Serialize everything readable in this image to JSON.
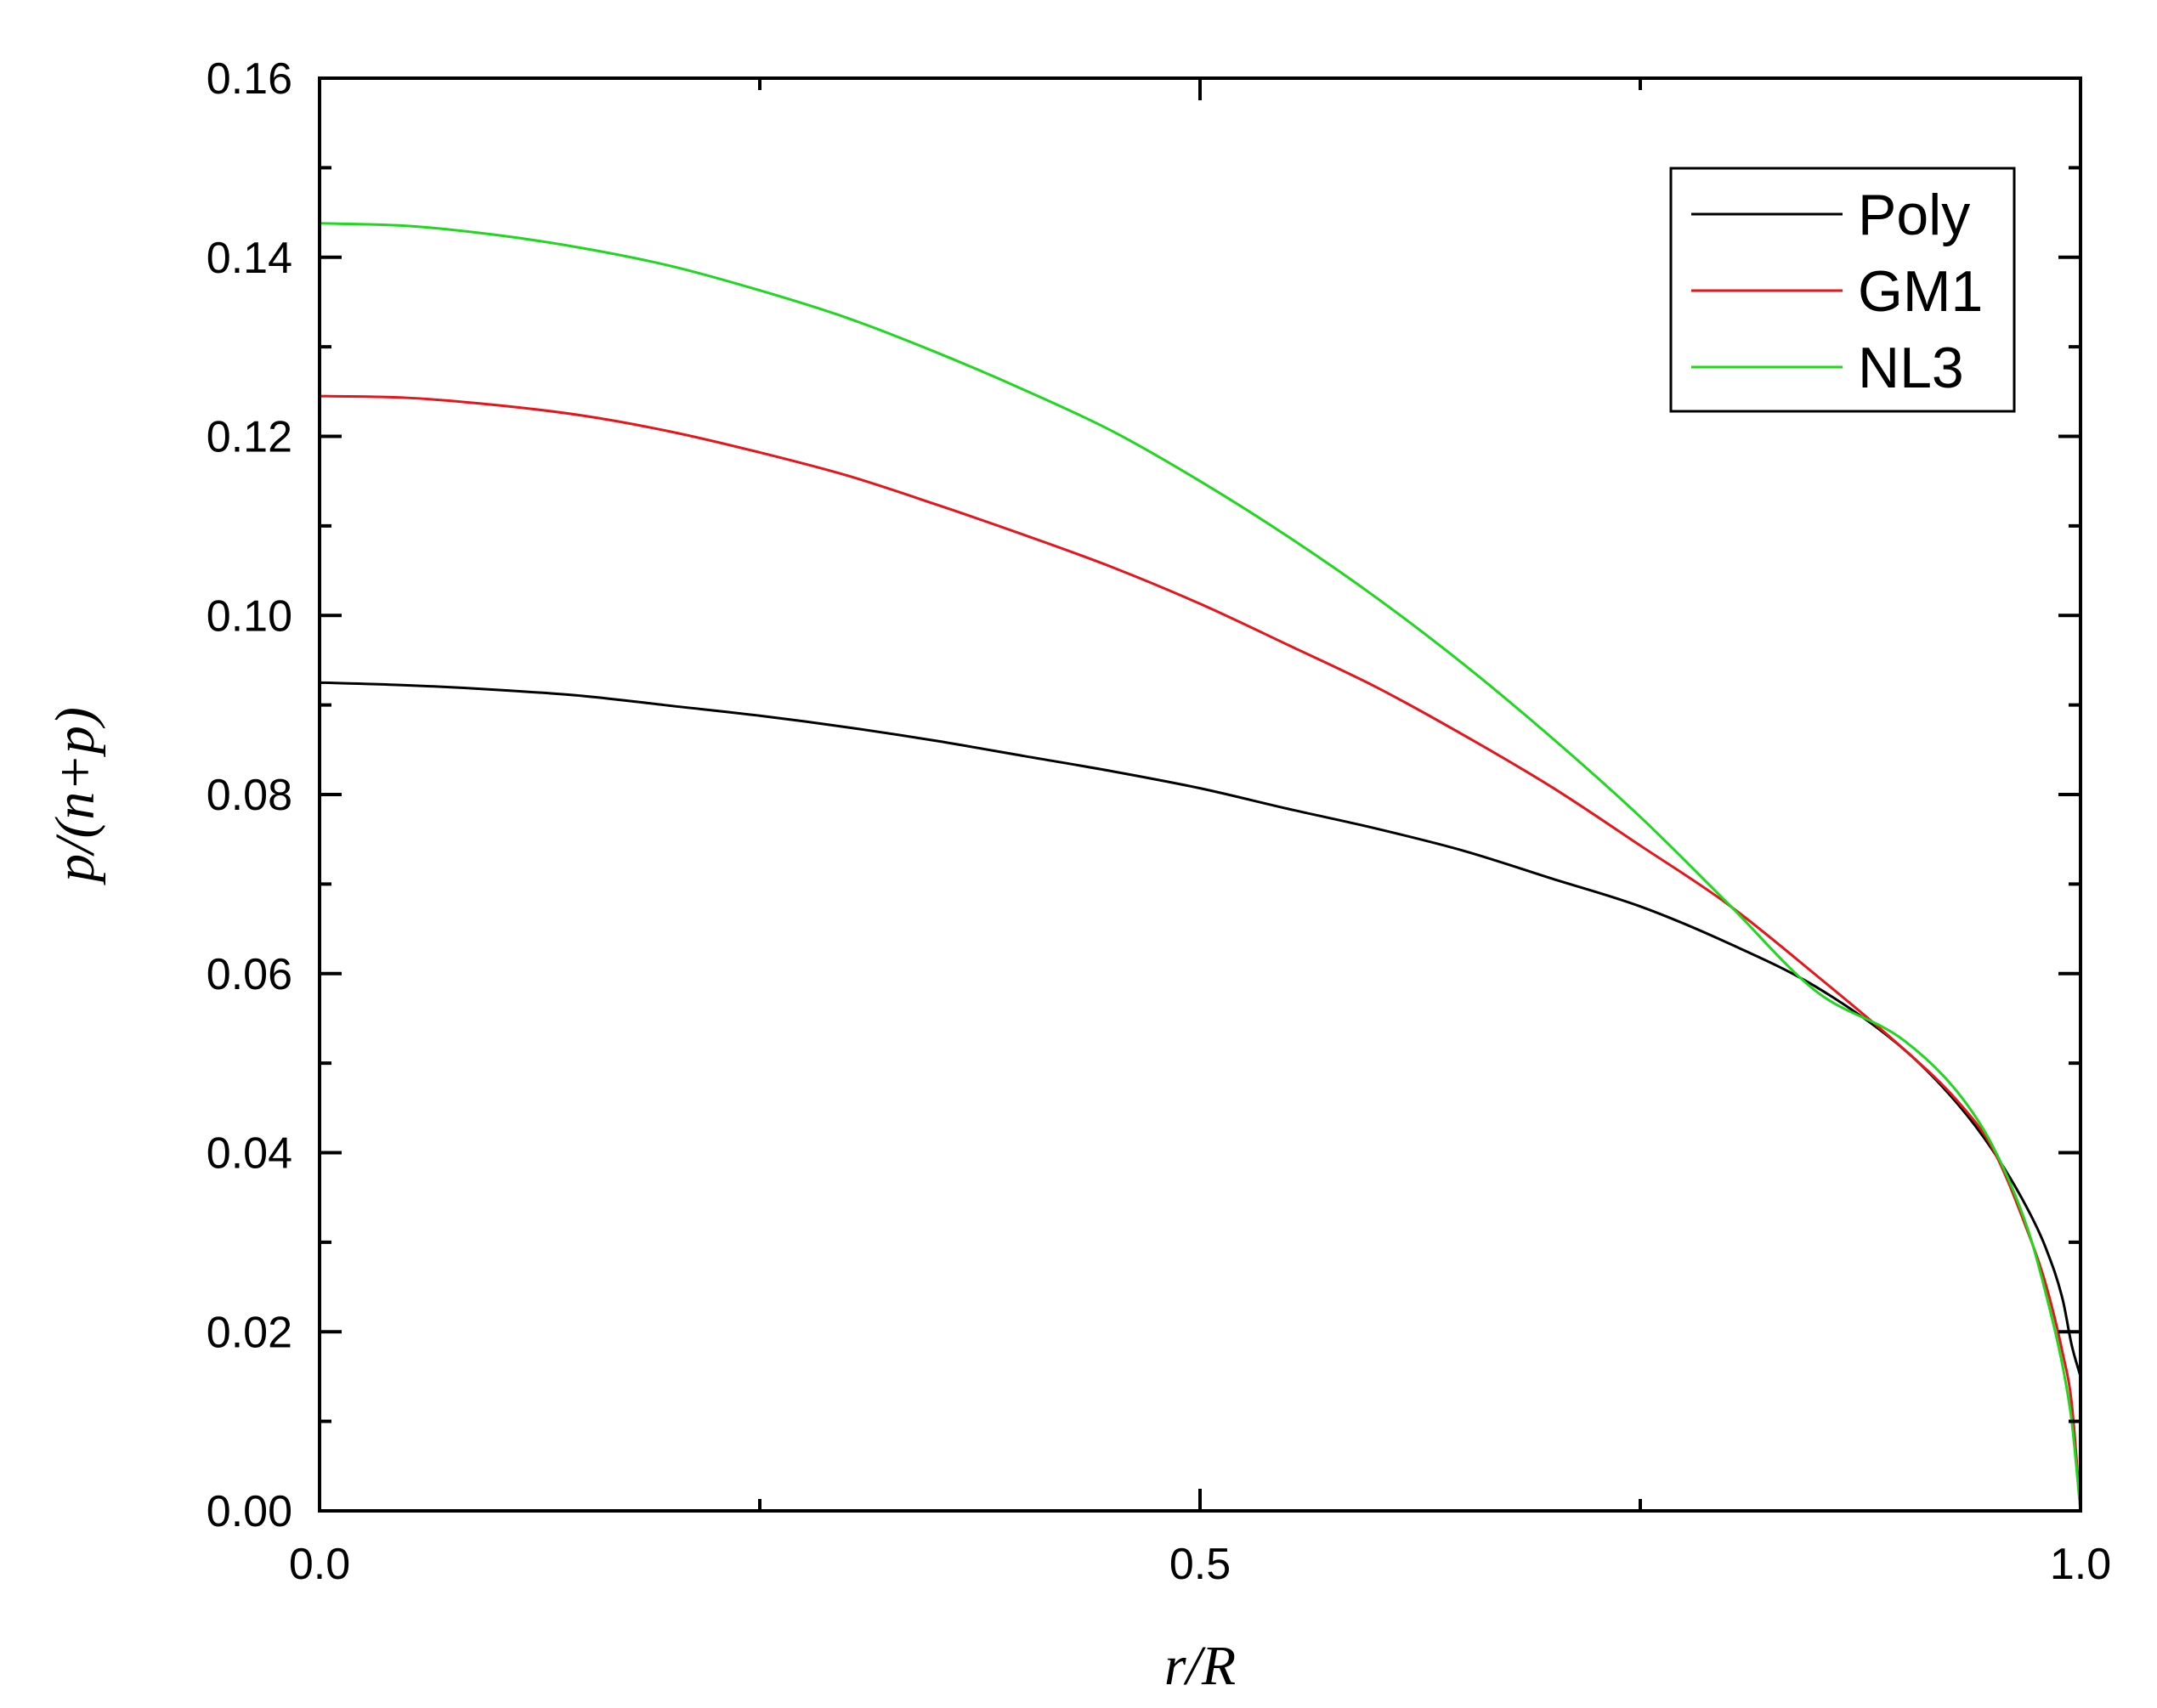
{
  "chart_data": {
    "type": "line",
    "title": "",
    "xlabel": "r/R",
    "ylabel": "p/(n+p)",
    "xlim": [
      0.0,
      1.0
    ],
    "ylim": [
      0.0,
      0.16
    ],
    "xticks": [
      0.0,
      0.5,
      1.0
    ],
    "xtick_labels": [
      "0.0",
      "0.5",
      "1.0"
    ],
    "yticks": [
      0.0,
      0.02,
      0.04,
      0.06,
      0.08,
      0.1,
      0.12,
      0.14,
      0.16
    ],
    "ytick_labels": [
      "0.00",
      "0.02",
      "0.04",
      "0.06",
      "0.08",
      "0.10",
      "0.12",
      "0.14",
      "0.16"
    ],
    "grid": false,
    "legend_position": "top-right",
    "series": [
      {
        "name": "Poly",
        "color": "#000000",
        "x": [
          0,
          0.05,
          0.1,
          0.15,
          0.2,
          0.25,
          0.3,
          0.35,
          0.4,
          0.45,
          0.5,
          0.55,
          0.6,
          0.65,
          0.7,
          0.75,
          0.8,
          0.85,
          0.9,
          0.93,
          0.95,
          0.97,
          0.98,
          0.99,
          0.995,
          1.0
        ],
        "y": [
          0.0925,
          0.0922,
          0.0917,
          0.091,
          0.0899,
          0.0888,
          0.0875,
          0.086,
          0.0843,
          0.0826,
          0.0807,
          0.0784,
          0.0762,
          0.0737,
          0.0706,
          0.0675,
          0.0634,
          0.0585,
          0.0515,
          0.0455,
          0.0403,
          0.0337,
          0.0295,
          0.0235,
          0.0185,
          0.015
        ]
      },
      {
        "name": "GM1",
        "color": "#e8141b",
        "x": [
          0,
          0.05,
          0.1,
          0.15,
          0.2,
          0.25,
          0.3,
          0.35,
          0.4,
          0.45,
          0.5,
          0.55,
          0.6,
          0.65,
          0.7,
          0.75,
          0.8,
          0.85,
          0.9,
          0.93,
          0.95,
          0.97,
          0.98,
          0.99,
          0.995,
          1.0
        ],
        "y": [
          0.1245,
          0.1243,
          0.1235,
          0.1223,
          0.1205,
          0.1182,
          0.1156,
          0.1124,
          0.109,
          0.1054,
          0.1013,
          0.0967,
          0.092,
          0.0866,
          0.0808,
          0.0743,
          0.0677,
          0.0598,
          0.0515,
          0.0458,
          0.0405,
          0.0312,
          0.0255,
          0.0175,
          0.012,
          0.0
        ]
      },
      {
        "name": "NL3",
        "color": "#1ed81e",
        "x": [
          0,
          0.05,
          0.1,
          0.15,
          0.2,
          0.25,
          0.3,
          0.35,
          0.4,
          0.45,
          0.5,
          0.55,
          0.6,
          0.65,
          0.7,
          0.75,
          0.8,
          0.85,
          0.9,
          0.93,
          0.95,
          0.97,
          0.98,
          0.99,
          0.995,
          1.0
        ],
        "y": [
          0.1438,
          0.1435,
          0.1425,
          0.141,
          0.139,
          0.1363,
          0.1332,
          0.1294,
          0.1252,
          0.1206,
          0.115,
          0.1088,
          0.102,
          0.0945,
          0.0863,
          0.0775,
          0.0678,
          0.058,
          0.0525,
          0.0468,
          0.0408,
          0.0315,
          0.0245,
          0.016,
          0.01,
          0.0
        ]
      }
    ]
  }
}
